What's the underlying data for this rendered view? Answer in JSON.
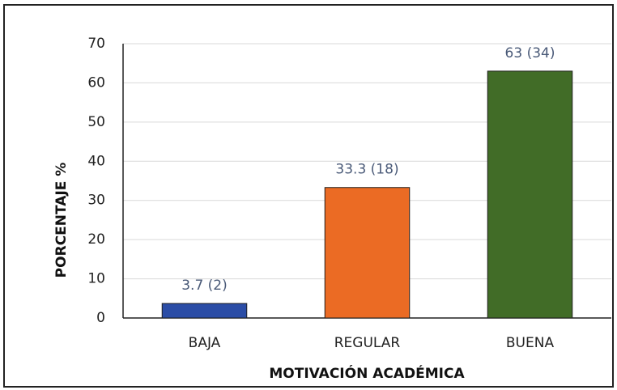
{
  "chart_data": {
    "type": "bar",
    "x_label": "MOTIVACIÓN ACADÉMICA",
    "y_label": "PORCENTAJE %",
    "categories": [
      "BAJA",
      "REGULAR",
      "BUENA"
    ],
    "values": [
      3.7,
      33.3,
      63
    ],
    "value_labels": [
      "3.7 (2)",
      "33.3 (18)",
      "63 (34)"
    ],
    "colors": [
      "#3a62b8",
      "#f08132",
      "#548235"
    ],
    "ylim": [
      0,
      70
    ],
    "yticks": [
      0,
      10,
      20,
      30,
      40,
      50,
      60,
      70
    ],
    "grid": true
  }
}
